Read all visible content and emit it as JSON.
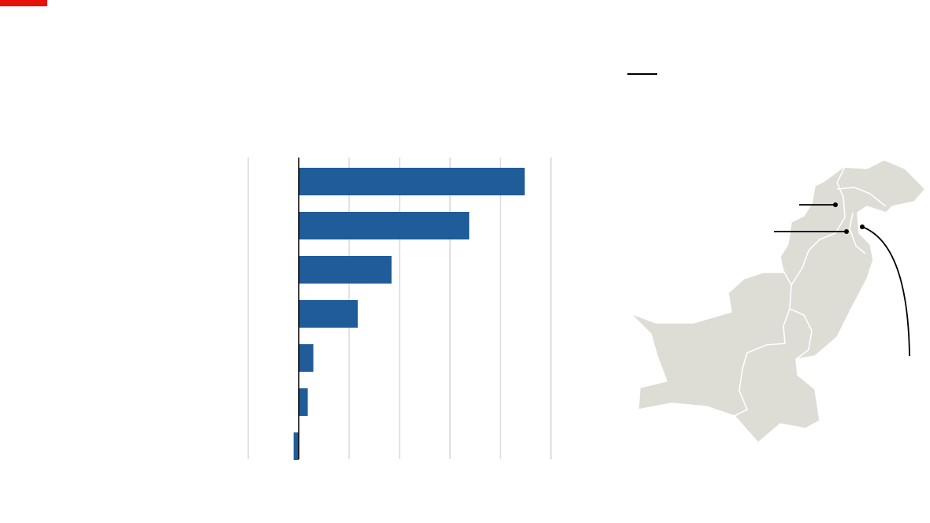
{
  "colors": {
    "brand_red": "#e3120b",
    "bar_blue": "#1f5c99",
    "gridline": "#d9d9d9",
    "zero_line": "#000000",
    "map_land": "#dddcd5",
    "map_border": "#ffffff",
    "callout": "#000000"
  },
  "chart_data": {
    "type": "bar",
    "orientation": "horizontal",
    "categories": [
      "",
      "",
      "",
      "",
      "",
      "",
      ""
    ],
    "values": [
      4.48,
      3.38,
      1.84,
      1.17,
      0.29,
      0.18,
      -0.1
    ],
    "xlim": [
      -1,
      5
    ],
    "gridlines": [
      -1,
      0,
      1,
      2,
      3,
      4,
      5
    ],
    "grid": true,
    "title": "",
    "xlabel": "",
    "ylabel": ""
  },
  "map": {
    "region": "Pakistan",
    "callouts": 3
  }
}
